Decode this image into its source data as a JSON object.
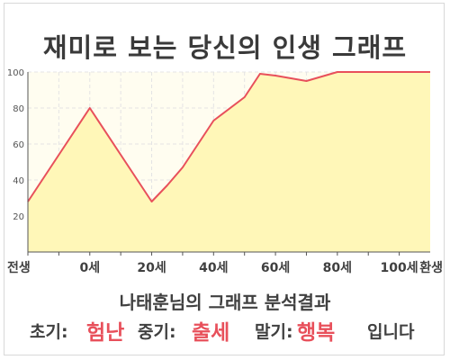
{
  "title": "재미로 보는 당신의 인생 그래프",
  "subtitle": "나태훈님의 그래프 분석결과",
  "result": {
    "early_label": "초기:",
    "early_value": "험난",
    "mid_label": "중기:",
    "mid_value": "출세",
    "late_label": "말기:",
    "late_value": "행복",
    "suffix": "입니다"
  },
  "colors": {
    "line": "#e8505b",
    "fill": "#fff7b8",
    "plot_bg": "#fffdf0",
    "axis": "#555555",
    "grid": "#e4e4e4",
    "accent": "#e8505b"
  },
  "chart_data": {
    "type": "area",
    "title": "재미로 보는 당신의 인생 그래프",
    "xlabel": "",
    "ylabel": "",
    "categories": [
      "전생",
      "0세",
      "20세",
      "40세",
      "60세",
      "80세",
      "100세",
      "환생"
    ],
    "x": [
      -20,
      -10,
      0,
      10,
      20,
      25,
      30,
      40,
      50,
      55,
      60,
      70,
      80,
      90,
      100,
      110
    ],
    "series": [
      {
        "values": [
          28,
          54,
          80,
          54,
          28,
          37,
          47,
          73,
          86,
          99,
          98,
          95,
          100,
          100,
          100,
          100
        ]
      }
    ],
    "ylim": [
      0,
      100
    ],
    "yticks": [
      20,
      40,
      60,
      80,
      100
    ],
    "grid": true,
    "legend": "none"
  }
}
